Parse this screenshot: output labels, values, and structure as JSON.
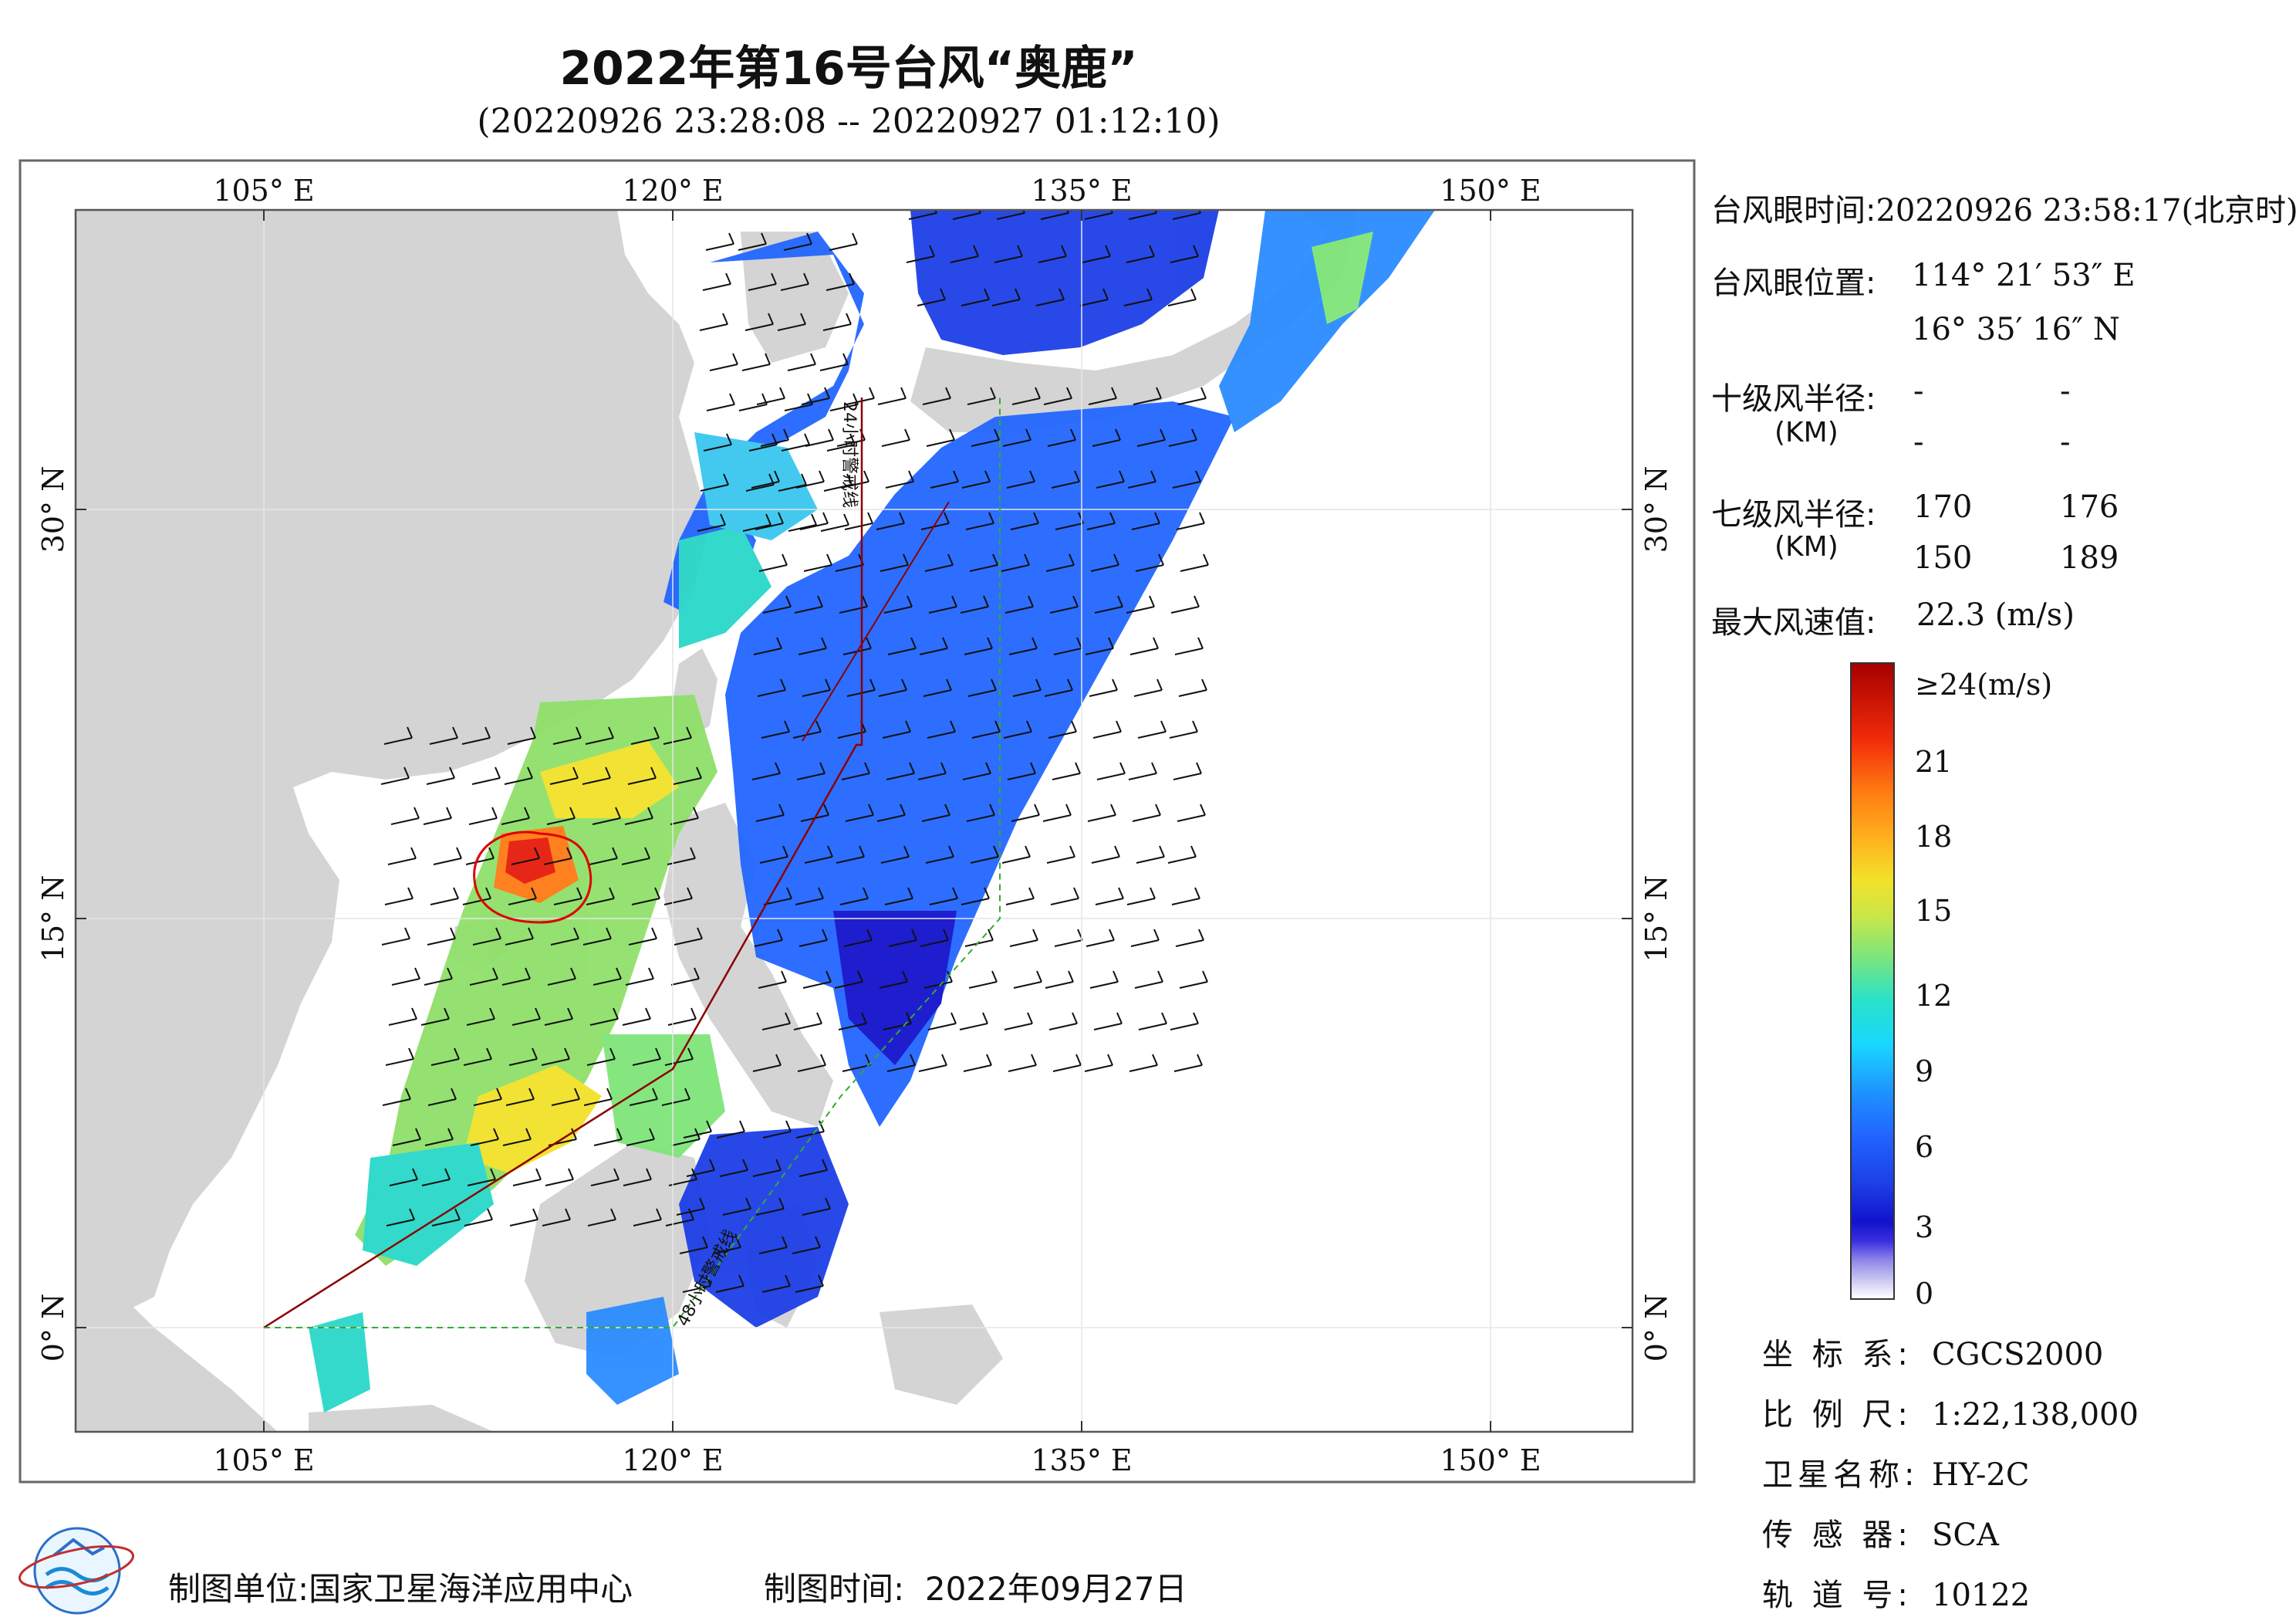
{
  "title": "2022年第16号台风“奥鹿”",
  "subtitle": "(20220926 23:28:08 -- 20220927 01:12:10)",
  "map": {
    "lon_ticks": [
      "105° E",
      "120° E",
      "135° E",
      "150° E"
    ],
    "lat_ticks": [
      "0° N",
      "15° N",
      "30° N"
    ],
    "track_label_24h": "24小时警戒线",
    "track_label_48h": "48小时警戒线"
  },
  "typhoon_info": {
    "eye_time_label": "台风眼时间:",
    "eye_time": "20220926 23:58:17(北京时)",
    "eye_pos_label": "台风眼位置:",
    "eye_lon": "114° 21′ 53″ E",
    "eye_lat": "16° 35′ 16″ N",
    "r10_label": "十级风半径:",
    "km_label": "(KM)",
    "r10_values": [
      "-",
      "-",
      "-",
      "-"
    ],
    "r7_label": "七级风半径:",
    "r7_values": [
      "170",
      "176",
      "150",
      "189"
    ],
    "max_wind_label": "最大风速值:",
    "max_wind": "22.3  (m/s)"
  },
  "colorbar": {
    "ticks": [
      "≥24(m/s)",
      "21",
      "18",
      "15",
      "12",
      "9",
      "6",
      "3",
      "0"
    ]
  },
  "meta": {
    "crs_label": "坐 标 系:",
    "crs": "CGCS2000",
    "scale_label": "比 例 尺:",
    "scale": "1:22,138,000",
    "satellite_label": "卫星名称:",
    "satellite": "HY-2C",
    "sensor_label": "传 感 器:",
    "sensor": "SCA",
    "orbit_label": "轨 道 号:",
    "orbit": "10122"
  },
  "footer": {
    "producer_label": "制图单位:",
    "producer": "国家卫星海洋应用中心",
    "date_label": "制图时间:",
    "date": "2022年09月27日"
  },
  "colors": {
    "land": "#d4d4d4",
    "sea": "#ffffff",
    "warning24": "#8b0000",
    "warning48": "#33aa33",
    "eye_circle": "#e00000"
  }
}
